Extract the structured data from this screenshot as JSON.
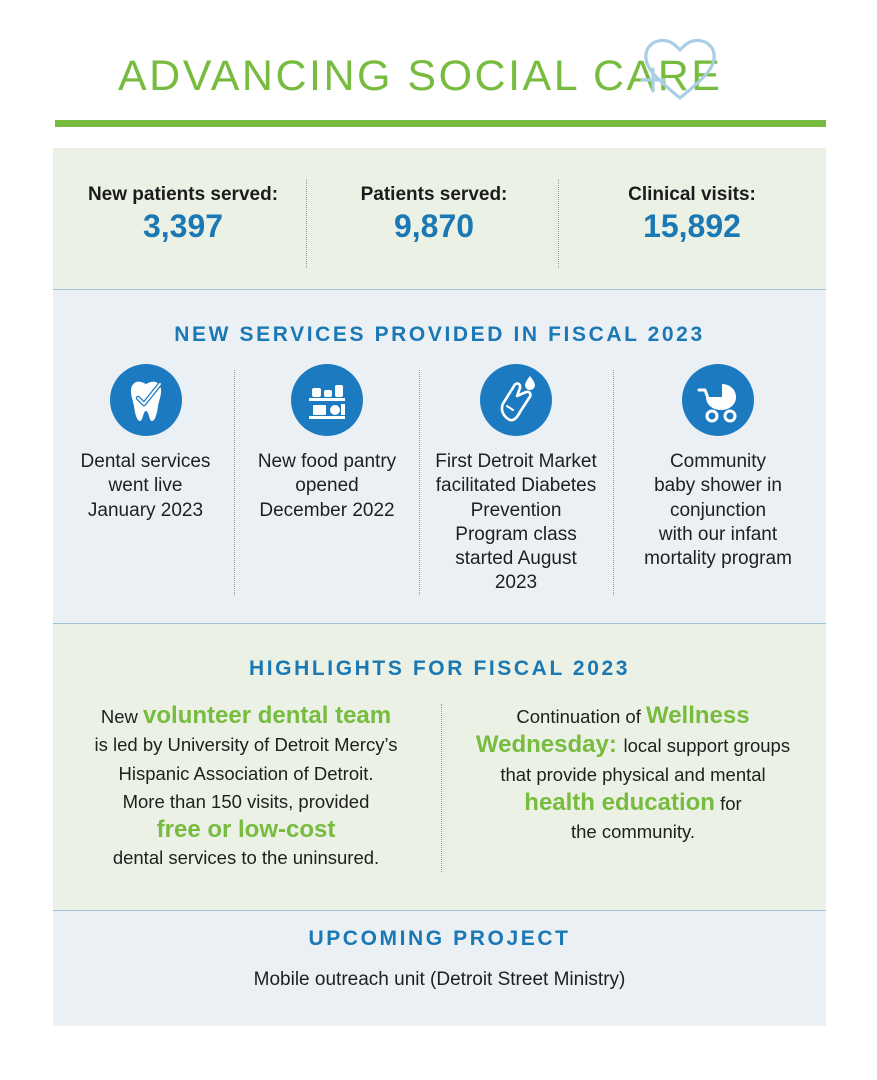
{
  "header": {
    "title": "ADVANCING SOCIAL CARE",
    "icon": "heart-plus-icon",
    "accent_color": "#77bc3f",
    "heading_color": "#1a78b4"
  },
  "stats": [
    {
      "label": "New patients served:",
      "value": "3,397"
    },
    {
      "label": "Patients served:",
      "value": "9,870"
    },
    {
      "label": "Clinical visits:",
      "value": "15,892"
    }
  ],
  "services": {
    "heading": "NEW SERVICES PROVIDED IN FISCAL 2023",
    "items": [
      {
        "icon": "tooth-check-icon",
        "lines": [
          "Dental services",
          "went live",
          "January 2023"
        ]
      },
      {
        "icon": "food-pantry-shelf-icon",
        "lines": [
          "New food pantry",
          "opened",
          "December 2022"
        ]
      },
      {
        "icon": "finger-prick-blood-drop-icon",
        "lines": [
          "First Detroit Market",
          "facilitated Diabetes",
          "Prevention",
          "Program class",
          "started August",
          "2023"
        ]
      },
      {
        "icon": "baby-carriage-icon",
        "lines": [
          "Community",
          "baby shower in",
          "conjunction",
          "with our infant",
          "mortality program"
        ]
      }
    ]
  },
  "highlights": {
    "heading": "HIGHLIGHTS FOR FISCAL 2023",
    "left": {
      "l1a": "New ",
      "l1b": "volunteer dental team",
      "l2": "is led by University of Detroit Mercy’s",
      "l3": "Hispanic Association of Detroit.",
      "l4": "More than 150 visits, provided",
      "l5": "free or low-cost",
      "l6": "dental services to the uninsured."
    },
    "right": {
      "l1a": "Continuation of ",
      "l1b": "Wellness",
      "l2a": "Wednesday",
      "l2b": ": ",
      "l2c": "local support groups",
      "l3": "that provide physical and mental",
      "l4a": "health education",
      "l4b": " for",
      "l5": "the community."
    }
  },
  "upcoming": {
    "heading": "UPCOMING PROJECT",
    "text": "Mobile outreach unit (Detroit Street Ministry)"
  }
}
